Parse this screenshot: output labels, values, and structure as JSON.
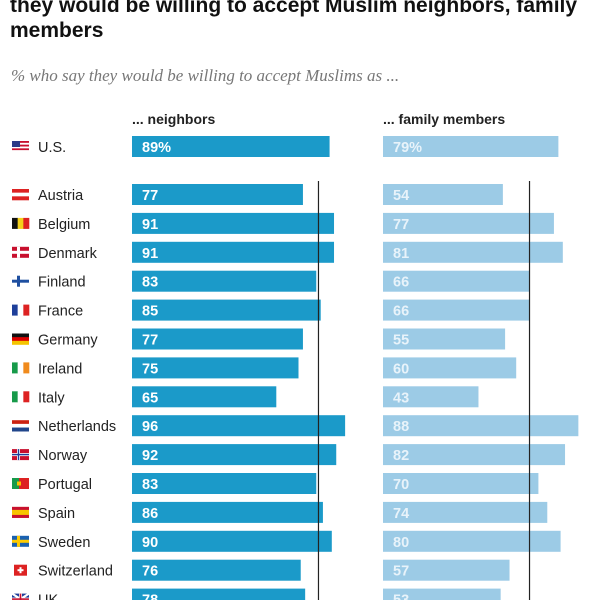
{
  "title": "they would be willing to accept Muslim neighbors, family members",
  "subtitle": "% who say they would be willing to accept Muslims as ...",
  "columns": [
    "... neighbors",
    "... family members"
  ],
  "colors": {
    "neighbors": "#1b9ac9",
    "family": "#9ccbe6",
    "label": "#ffffff",
    "label_family": "#e8f3fa",
    "ref_line": "#222222"
  },
  "chart_data": [
    {
      "type": "bar",
      "orientation": "horizontal",
      "title": "... neighbors",
      "categories": [
        "U.S.",
        "Austria",
        "Belgium",
        "Denmark",
        "Finland",
        "France",
        "Germany",
        "Ireland",
        "Italy",
        "Netherlands",
        "Norway",
        "Portugal",
        "Spain",
        "Sweden",
        "Switzerland",
        "UK"
      ],
      "values": [
        89,
        77,
        91,
        91,
        83,
        85,
        77,
        75,
        65,
        96,
        92,
        83,
        86,
        90,
        76,
        78
      ],
      "value_labels": [
        "89%",
        "77",
        "91",
        "91",
        "83",
        "85",
        "77",
        "75",
        "65",
        "96",
        "92",
        "83",
        "86",
        "90",
        "76",
        "78"
      ],
      "reference_line": 84,
      "xlim": [
        0,
        100
      ]
    },
    {
      "type": "bar",
      "orientation": "horizontal",
      "title": "... family members",
      "categories": [
        "U.S.",
        "Austria",
        "Belgium",
        "Denmark",
        "Finland",
        "France",
        "Germany",
        "Ireland",
        "Italy",
        "Netherlands",
        "Norway",
        "Portugal",
        "Spain",
        "Sweden",
        "Switzerland",
        "UK"
      ],
      "values": [
        79,
        54,
        77,
        81,
        66,
        66,
        55,
        60,
        43,
        88,
        82,
        70,
        74,
        80,
        57,
        53
      ],
      "value_labels": [
        "79%",
        "54",
        "77",
        "81",
        "66",
        "66",
        "55",
        "60",
        "43",
        "88",
        "82",
        "70",
        "74",
        "80",
        "57",
        "53"
      ],
      "reference_line": 66,
      "xlim": [
        0,
        100
      ]
    }
  ]
}
